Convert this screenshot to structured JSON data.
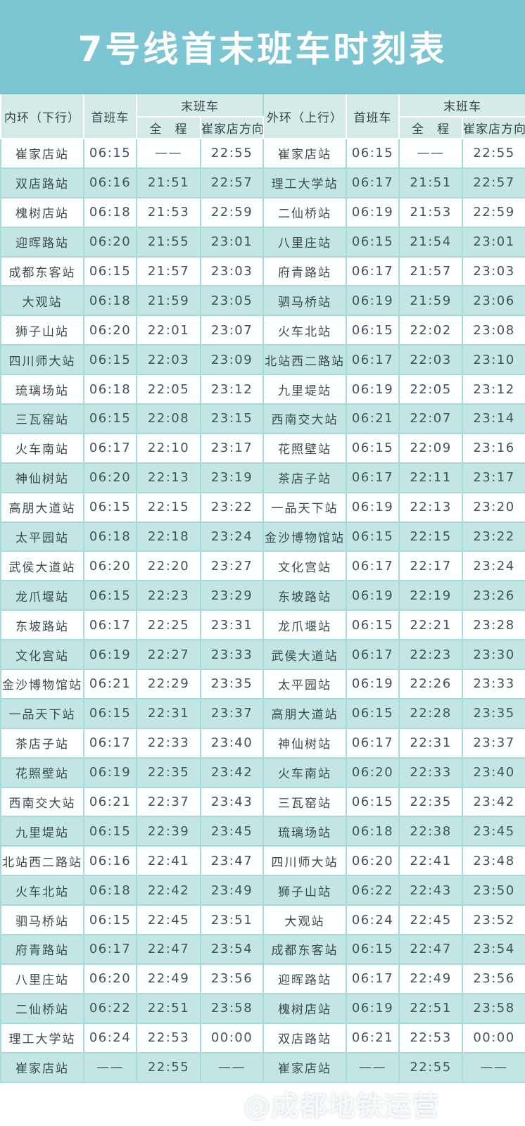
{
  "title": "7号线首末班车时刻表",
  "colors": {
    "banner": "#7cc6d4",
    "header_bg": "#d5ebe8",
    "row_teal": "#c3e5e3",
    "row_white": "#feffff",
    "grid_line": "#a7dadb",
    "title_text": "#ffffff",
    "body_text": "#41535a"
  },
  "watermark": {
    "icon": "weibo-icon",
    "text": "@成都地铁运营"
  },
  "table": {
    "inner": {
      "direction": "内环（下行）",
      "first_train": "首班车",
      "last_train": "末班车",
      "full_route": "全　程",
      "branch": "崔家店方向"
    },
    "outer": {
      "direction": "外环（上行）",
      "first_train": "首班车",
      "last_train": "末班车",
      "full_route": "全　程",
      "branch": "崔家店方向"
    },
    "rows": [
      [
        "崔家店站",
        "06:15",
        "——",
        "22:55",
        "崔家店站",
        "06:15",
        "——",
        "22:55"
      ],
      [
        "双店路站",
        "06:16",
        "21:51",
        "22:57",
        "理工大学站",
        "06:17",
        "21:51",
        "22:57"
      ],
      [
        "槐树店站",
        "06:18",
        "21:53",
        "22:59",
        "二仙桥站",
        "06:19",
        "21:53",
        "22:59"
      ],
      [
        "迎晖路站",
        "06:20",
        "21:55",
        "23:01",
        "八里庄站",
        "06:15",
        "21:54",
        "23:01"
      ],
      [
        "成都东客站",
        "06:15",
        "21:57",
        "23:03",
        "府青路站",
        "06:17",
        "21:57",
        "23:03"
      ],
      [
        "大观站",
        "06:18",
        "21:59",
        "23:05",
        "驷马桥站",
        "06:19",
        "21:59",
        "23:06"
      ],
      [
        "狮子山站",
        "06:20",
        "22:01",
        "23:07",
        "火车北站",
        "06:15",
        "22:02",
        "23:08"
      ],
      [
        "四川师大站",
        "06:15",
        "22:03",
        "23:09",
        "北站西二路站",
        "06:17",
        "22:03",
        "23:10"
      ],
      [
        "琉璃场站",
        "06:18",
        "22:05",
        "23:12",
        "九里堤站",
        "06:19",
        "22:05",
        "23:12"
      ],
      [
        "三瓦窑站",
        "06:15",
        "22:08",
        "23:15",
        "西南交大站",
        "06:21",
        "22:07",
        "23:14"
      ],
      [
        "火车南站",
        "06:17",
        "22:10",
        "23:17",
        "花照壁站",
        "06:15",
        "22:09",
        "23:16"
      ],
      [
        "神仙树站",
        "06:20",
        "22:13",
        "23:19",
        "茶店子站",
        "06:17",
        "22:11",
        "23:17"
      ],
      [
        "高朋大道站",
        "06:15",
        "22:15",
        "23:22",
        "一品天下站",
        "06:19",
        "22:13",
        "23:20"
      ],
      [
        "太平园站",
        "06:18",
        "22:18",
        "23:24",
        "金沙博物馆站",
        "06:15",
        "22:15",
        "23:22"
      ],
      [
        "武侯大道站",
        "06:20",
        "22:20",
        "23:27",
        "文化宫站",
        "06:17",
        "22:17",
        "23:24"
      ],
      [
        "龙爪堰站",
        "06:15",
        "22:23",
        "23:29",
        "东坡路站",
        "06:19",
        "22:19",
        "23:26"
      ],
      [
        "东坡路站",
        "06:17",
        "22:25",
        "23:31",
        "龙爪堰站",
        "06:15",
        "22:21",
        "23:28"
      ],
      [
        "文化宫站",
        "06:19",
        "22:27",
        "23:33",
        "武侯大道站",
        "06:17",
        "22:23",
        "23:30"
      ],
      [
        "金沙博物馆站",
        "06:21",
        "22:29",
        "23:35",
        "太平园站",
        "06:19",
        "22:26",
        "23:33"
      ],
      [
        "一品天下站",
        "06:15",
        "22:31",
        "23:37",
        "高朋大道站",
        "06:15",
        "22:28",
        "23:35"
      ],
      [
        "茶店子站",
        "06:17",
        "22:33",
        "23:40",
        "神仙树站",
        "06:17",
        "22:31",
        "23:37"
      ],
      [
        "花照壁站",
        "06:19",
        "22:35",
        "23:42",
        "火车南站",
        "06:20",
        "22:33",
        "23:40"
      ],
      [
        "西南交大站",
        "06:21",
        "22:37",
        "23:43",
        "三瓦窑站",
        "06:15",
        "22:35",
        "23:42"
      ],
      [
        "九里堤站",
        "06:15",
        "22:39",
        "23:45",
        "琉璃场站",
        "06:18",
        "22:38",
        "23:45"
      ],
      [
        "北站西二路站",
        "06:16",
        "22:41",
        "23:47",
        "四川师大站",
        "06:20",
        "22:41",
        "23:48"
      ],
      [
        "火车北站",
        "06:18",
        "22:42",
        "23:49",
        "狮子山站",
        "06:22",
        "22:43",
        "23:50"
      ],
      [
        "驷马桥站",
        "06:15",
        "22:45",
        "23:51",
        "大观站",
        "06:24",
        "22:45",
        "23:52"
      ],
      [
        "府青路站",
        "06:17",
        "22:47",
        "23:54",
        "成都东客站",
        "06:15",
        "22:47",
        "23:54"
      ],
      [
        "八里庄站",
        "06:20",
        "22:49",
        "23:56",
        "迎晖路站",
        "06:17",
        "22:49",
        "23:56"
      ],
      [
        "二仙桥站",
        "06:22",
        "22:51",
        "23:58",
        "槐树店站",
        "06:19",
        "22:51",
        "23:58"
      ],
      [
        "理工大学站",
        "06:24",
        "22:53",
        "00:00",
        "双店路站",
        "06:21",
        "22:53",
        "00:00"
      ],
      [
        "崔家店站",
        "——",
        "22:55",
        "——",
        "崔家店站",
        "——",
        "22:55",
        "——"
      ]
    ]
  }
}
